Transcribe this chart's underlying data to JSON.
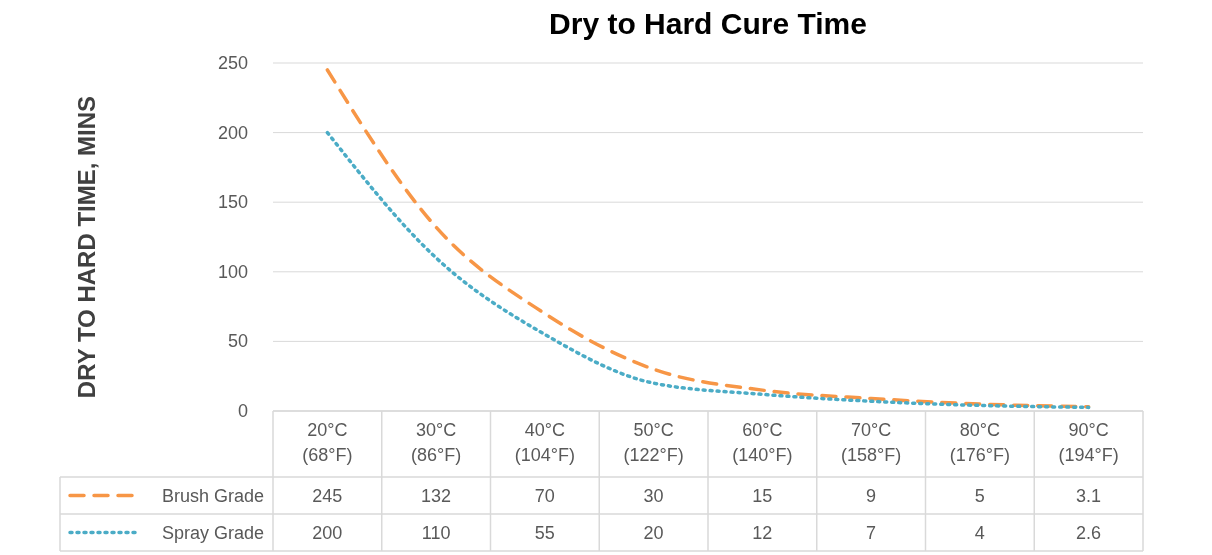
{
  "chart_data": {
    "type": "line",
    "title": "Dry to Hard Cure Time",
    "ylabel": "DRY TO HARD TIME, MINS",
    "categories": [
      "20°C\n(68°F)",
      "30°C\n(86°F)",
      "40°C\n(104°F)",
      "50°C\n(122°F)",
      "60°C\n(140°F)",
      "70°C\n(158°F)",
      "80°C\n(176°F)",
      "90°C\n(194°F)"
    ],
    "series": [
      {
        "name": "Brush Grade",
        "color": "#f79646",
        "line_style": "dashed",
        "values": [
          245,
          132,
          70,
          30,
          15,
          9,
          5,
          3.1
        ]
      },
      {
        "name": "Spray Grade",
        "color": "#4bacc6",
        "line_style": "dotted",
        "values": [
          200,
          110,
          55,
          20,
          12,
          7,
          4,
          2.6
        ]
      }
    ],
    "ylim": [
      0,
      250
    ],
    "yticks": [
      0,
      50,
      100,
      150,
      200,
      250
    ],
    "grid": "y",
    "legend": "bottom",
    "data_labels": true
  }
}
